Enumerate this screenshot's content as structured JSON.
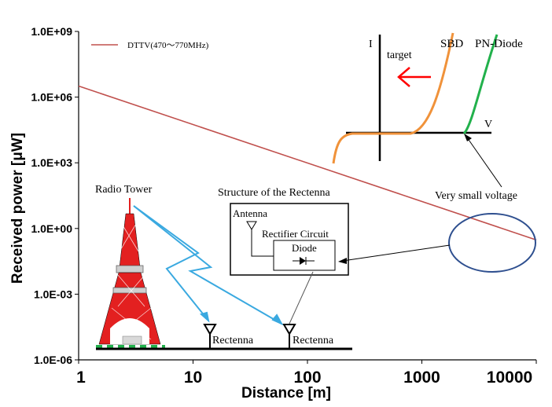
{
  "chart_data": {
    "type": "line",
    "xlabel": "Distance [m]",
    "ylabel": "Received power [μW]",
    "x_scale": "log",
    "y_scale": "log",
    "xlim": [
      1,
      10000
    ],
    "ylim": [
      1e-06,
      1000000000.0
    ],
    "x_ticks": [
      "1",
      "10",
      "100",
      "1000",
      "10000"
    ],
    "y_ticks": [
      "1.0E-06",
      "1.0E-03",
      "1.0E+00",
      "1.0E+03",
      "1.0E+06",
      "1.0E+09"
    ],
    "series": [
      {
        "name": "DTTV(470～770MHz)",
        "color": "#c0504d",
        "x": [
          1,
          10000
        ],
        "y": [
          3200000.0,
          0.3
        ]
      }
    ],
    "legend": "top-left",
    "grid": false
  },
  "inset_iv": {
    "axis_i": "I",
    "axis_v": "V",
    "target": "target",
    "sbd": "SBD",
    "pn": "PN-Diode",
    "note": "Very small voltage"
  },
  "illustration": {
    "tower": "Radio Tower",
    "structure_title": "Structure of the Rectenna",
    "antenna": "Antenna",
    "rectifier": "Rectifier Circuit",
    "diode": "Diode",
    "rectenna1": "Rectenna",
    "rectenna2": "Rectenna"
  },
  "colors": {
    "line": "#c0504d",
    "sbd": "#f0923a",
    "pn": "#22b14c",
    "arrow_red": "#ff0000",
    "wave": "#3aa9e0",
    "ellipse": "#2e4f8f"
  }
}
